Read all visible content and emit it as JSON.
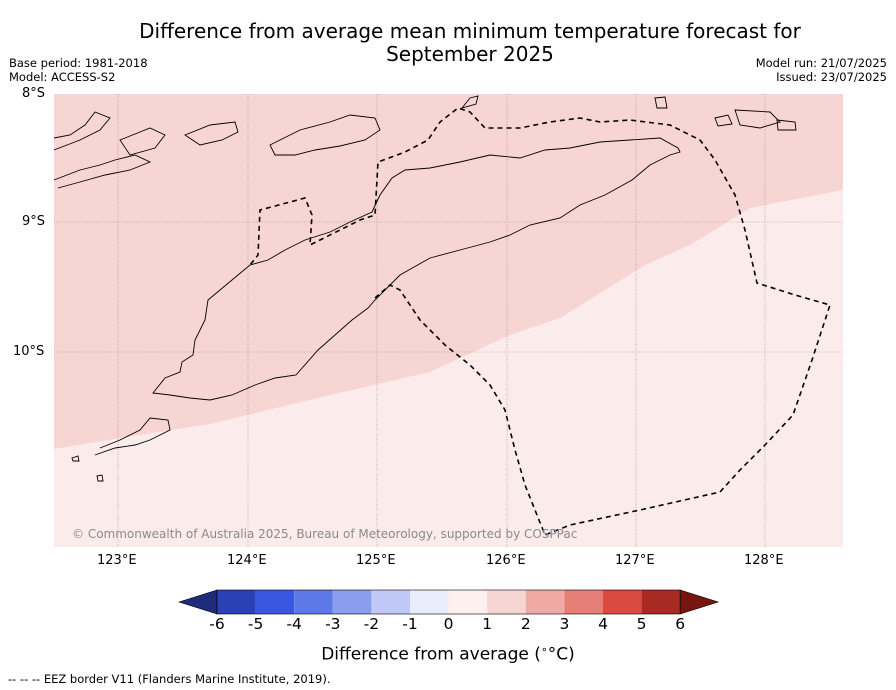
{
  "title": "Difference from average mean minimum temperature forecast for",
  "title_line2": "September 2025",
  "meta_left": [
    "Base period: 1981-2018",
    "Model: ACCESS-S2"
  ],
  "meta_right": [
    "Model run: 21/07/2025",
    "Issued: 23/07/2025"
  ],
  "lat_labels": [
    "8°S",
    "9°S",
    "10°S"
  ],
  "lon_labels": [
    "123°E",
    "124°E",
    "125°E",
    "126°E",
    "127°E",
    "128°E"
  ],
  "copyright": "© Commonwealth of Australia 2025, Bureau of Meteorology, supported by COSPPac",
  "colorbar": {
    "label": "Difference from average (",
    "label_unit": "°C)",
    "ticks": [
      "-6",
      "-5",
      "-4",
      "-3",
      "-2",
      "-1",
      "0",
      "1",
      "2",
      "3",
      "4",
      "5",
      "6"
    ],
    "colors": [
      "#1d2b7a",
      "#2a40b5",
      "#3a57e0",
      "#5d79e8",
      "#8a9ef0",
      "#bfc8f6",
      "#eaeefc",
      "#fdf0ef",
      "#f6d5d3",
      "#efaaa5",
      "#e57e76",
      "#d94a40",
      "#a82a22",
      "#76160f"
    ]
  },
  "map_colors": {
    "band_1_2": "#f6d5d3",
    "band_0_1": "#fbeceb",
    "land": "#ffffff"
  },
  "footnote": "-- -- -- EEZ border V11 (Flanders Marine Institute, 2019)."
}
